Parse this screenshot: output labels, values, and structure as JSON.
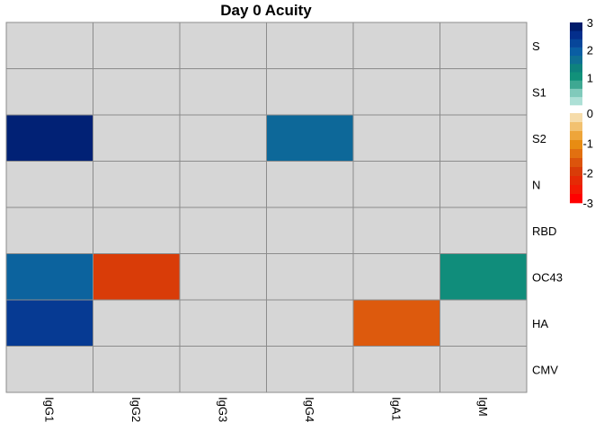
{
  "chart_data": {
    "type": "heatmap",
    "title": "Day 0 Acuity",
    "columns": [
      "IgG1",
      "IgG2",
      "IgG3",
      "IgG4",
      "IgA1",
      "IgM"
    ],
    "rows": [
      "S",
      "S1",
      "S2",
      "N",
      "RBD",
      "OC43",
      "HA",
      "CMV"
    ],
    "values": [
      [
        null,
        null,
        null,
        null,
        null,
        null
      ],
      [
        null,
        null,
        null,
        null,
        null,
        null
      ],
      [
        2.9,
        null,
        null,
        1.8,
        null,
        null
      ],
      [
        null,
        null,
        null,
        null,
        null,
        null
      ],
      [
        null,
        null,
        null,
        null,
        null,
        null
      ],
      [
        1.9,
        -2.0,
        null,
        null,
        null,
        1.1
      ],
      [
        2.5,
        null,
        null,
        null,
        -1.6,
        null
      ],
      [
        null,
        null,
        null,
        null,
        null,
        null
      ]
    ],
    "missing_color": "#d6d6d6",
    "legend": {
      "position": "right",
      "ticks": [
        3,
        2,
        1,
        0,
        -1,
        -2,
        -3
      ],
      "range": [
        -3,
        3
      ],
      "positive_colors": [
        "#ade0d6",
        "#80cabb",
        "#3ea892",
        "#11917a",
        "#0e827d",
        "#0f6f93",
        "#0a5ea3",
        "#07469a",
        "#042e8c",
        "#001c6b"
      ],
      "negative_colors": [
        "#f6dcaa",
        "#f2c170",
        "#eea53a",
        "#e88c12",
        "#e27010",
        "#dc540c",
        "#d93c08",
        "#e52a05",
        "#f21a03",
        "#ff0000"
      ]
    }
  }
}
